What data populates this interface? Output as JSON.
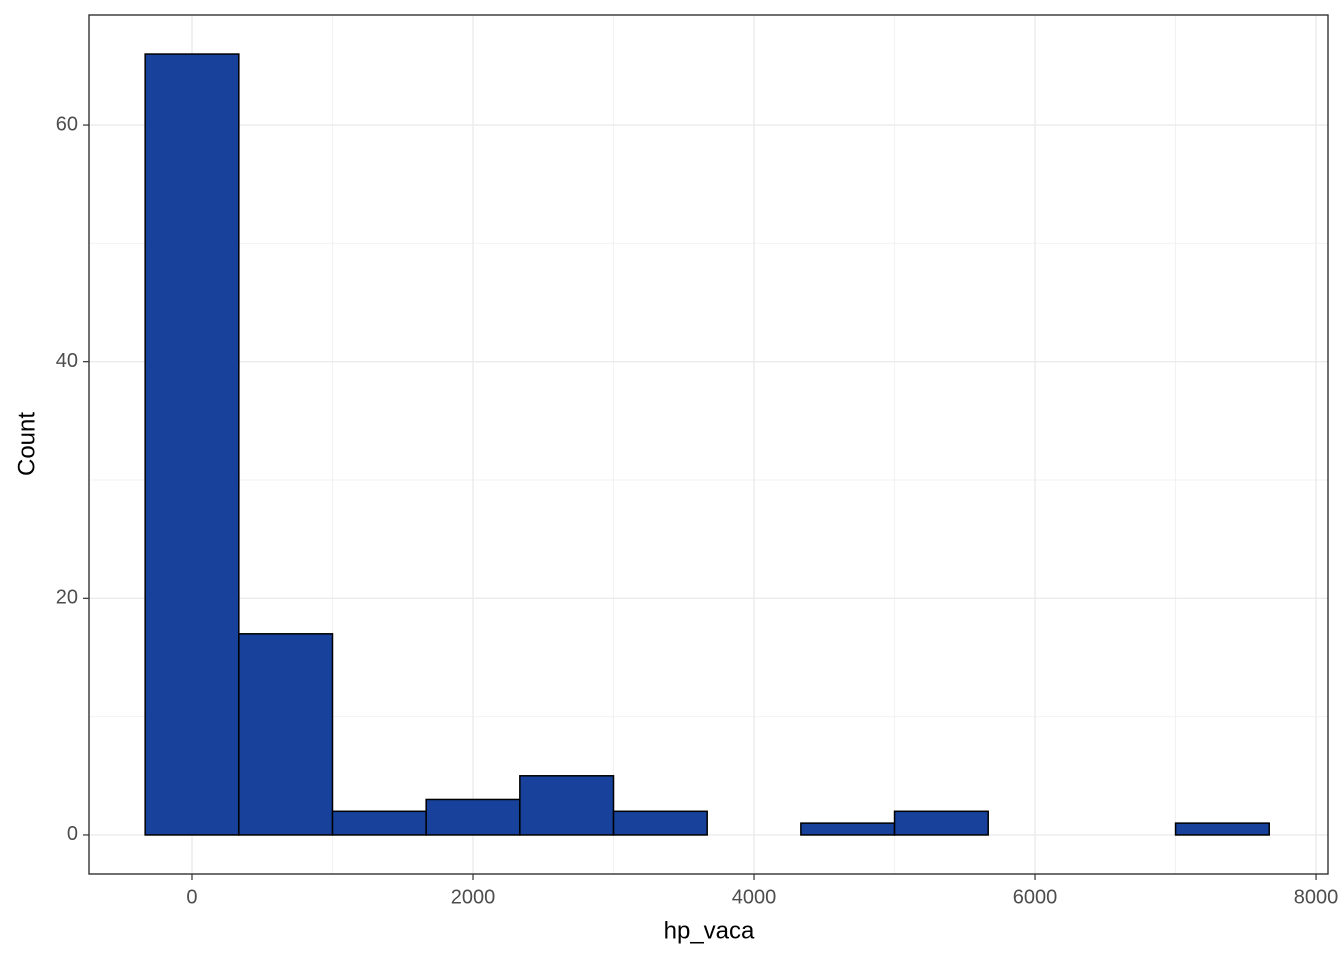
{
  "chart_data": {
    "type": "histogram",
    "x_label": "hp_vaca",
    "y_label": "Count",
    "bins": [
      -333.33,
      333.33,
      1000,
      1666.67,
      2333.33,
      3000,
      3666.67,
      4333.33,
      5000,
      5666.67,
      6333.33,
      7000,
      7666.67
    ],
    "values": [
      66,
      17,
      2,
      3,
      5,
      2,
      0,
      1,
      2,
      0,
      0,
      1
    ],
    "color": "#17419a",
    "edge_color": "#000000",
    "xlim": [
      -733,
      8085
    ],
    "ylim": [
      -3.3,
      69.3
    ],
    "xticks": [
      0,
      2000,
      4000,
      6000,
      8000
    ],
    "yticks": [
      0,
      20,
      40,
      60
    ],
    "grid": true
  }
}
